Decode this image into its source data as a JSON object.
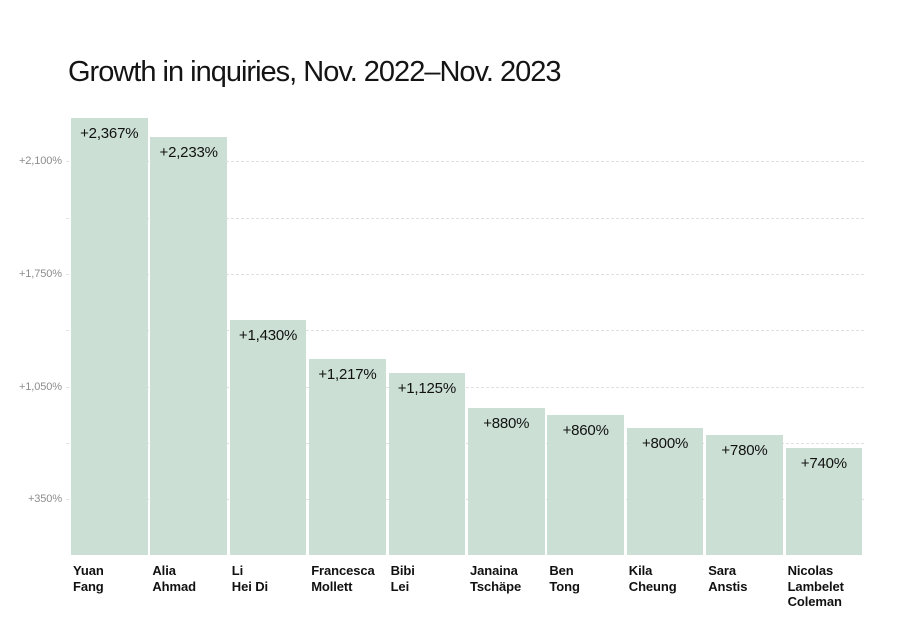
{
  "title": "Growth in inquiries, Nov. 2022–Nov. 2023",
  "chart_data": {
    "type": "bar",
    "title": "Growth in inquiries, Nov. 2022–Nov. 2023",
    "categories": [
      "Yuan Fang",
      "Alia Ahmad",
      "Li Hei Di",
      "Francesca Mollett",
      "Bibi Lei",
      "Janaina Tschäpe",
      "Ben Tong",
      "Kila Cheung",
      "Sara Anstis",
      "Nicolas Lambelet Coleman"
    ],
    "values": [
      2367,
      2233,
      1430,
      1217,
      1125,
      880,
      860,
      800,
      780,
      740
    ],
    "bar_labels": [
      "+2,367%",
      "+2,233%",
      "+1,430%",
      "+1,217%",
      "+1,125%",
      "+880%",
      "+860%",
      "+800%",
      "+780%",
      "+740%"
    ],
    "category_lines": [
      [
        "Yuan",
        "Fang"
      ],
      [
        "Alia",
        "Ahmad"
      ],
      [
        "Li",
        "Hei Di"
      ],
      [
        "Francesca",
        "Mollett"
      ],
      [
        "Bibi",
        "Lei"
      ],
      [
        "Janaina",
        "Tschäpe"
      ],
      [
        "Ben",
        "Tong"
      ],
      [
        "Kila",
        "Cheung"
      ],
      [
        "Sara",
        "Anstis"
      ],
      [
        "Nicolas",
        "Lambelet",
        "Coleman"
      ]
    ],
    "xlabel": "",
    "ylabel": "",
    "y_ticks": [
      {
        "value": 2100,
        "label": "+2,100%"
      },
      {
        "value": 1750,
        "label": "+1,750%"
      },
      {
        "value": 1050,
        "label": "+1,050%"
      },
      {
        "value": 350,
        "label": "+350%"
      }
    ],
    "ylim": [
      0,
      2450
    ],
    "grid": "horizontal-dashed",
    "legend": "none",
    "colors": {
      "bar_fill": "#cbdfd4",
      "gridline": "#e0e0e0",
      "axis_label_text": "#8d8d8d",
      "text": "#141414",
      "background": "#ffffff"
    }
  }
}
